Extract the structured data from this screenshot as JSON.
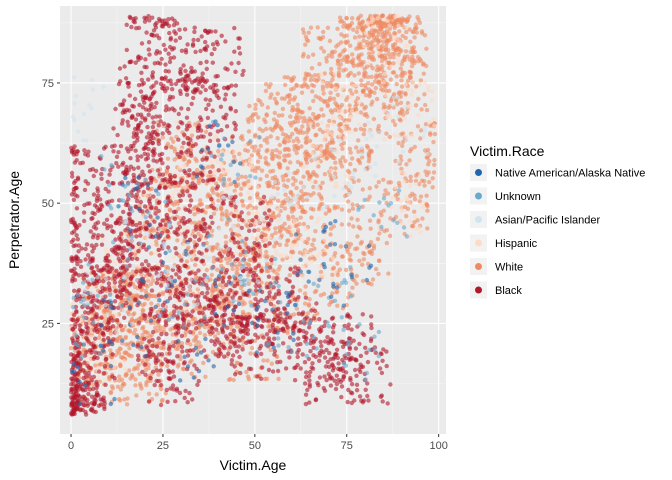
{
  "chart_data": {
    "type": "scatter",
    "xlabel": "Victim.Age",
    "ylabel": "Perpetrator.Age",
    "xlim": [
      -3,
      102
    ],
    "ylim": [
      2,
      91
    ],
    "x_ticks": [
      0,
      25,
      50,
      75,
      100
    ],
    "y_ticks": [
      25,
      50,
      75
    ],
    "grid": true,
    "legend": {
      "title": "Victim.Race",
      "position": "right",
      "entries": [
        {
          "name": "Native American/Alaska Native",
          "color": "#2166ac"
        },
        {
          "name": "Unknown",
          "color": "#67a9cf"
        },
        {
          "name": "Asian/Pacific Islander",
          "color": "#d1e5f0"
        },
        {
          "name": "Hispanic",
          "color": "#fddbc7"
        },
        {
          "name": "White",
          "color": "#ef8a62"
        },
        {
          "name": "Black",
          "color": "#b2182b"
        }
      ]
    },
    "series": [
      {
        "name": "White",
        "color": "#ef8a62",
        "x": [
          5,
          10,
          15,
          20,
          25,
          30,
          35,
          40,
          45,
          50,
          55,
          60,
          65,
          70,
          75,
          80,
          85,
          90,
          95,
          20,
          30,
          40,
          50,
          60,
          70,
          80,
          85,
          88,
          75,
          65,
          55,
          45,
          35,
          25,
          15,
          8,
          60,
          70,
          80,
          90,
          50,
          40,
          30,
          20,
          10,
          65,
          75,
          85,
          90,
          55
        ],
        "y": [
          20,
          25,
          30,
          40,
          50,
          60,
          55,
          45,
          35,
          40,
          50,
          60,
          65,
          70,
          75,
          80,
          85,
          82,
          60,
          30,
          40,
          50,
          60,
          70,
          80,
          85,
          88,
          86,
          65,
          55,
          45,
          35,
          30,
          25,
          20,
          15,
          30,
          35,
          40,
          50,
          20,
          25,
          20,
          15,
          30,
          45,
          55,
          70,
          75,
          65
        ]
      },
      {
        "name": "Black",
        "color": "#b2182b",
        "x": [
          0,
          2,
          5,
          8,
          12,
          15,
          18,
          20,
          22,
          25,
          28,
          30,
          32,
          35,
          38,
          40,
          42,
          45,
          48,
          50,
          55,
          60,
          65,
          70,
          75,
          80,
          20,
          25,
          30,
          18,
          22,
          15,
          10,
          5,
          3,
          0,
          1,
          35,
          45,
          28
        ],
        "y": [
          8,
          15,
          25,
          35,
          45,
          55,
          65,
          75,
          85,
          20,
          30,
          40,
          50,
          60,
          70,
          80,
          25,
          35,
          45,
          20,
          30,
          25,
          20,
          15,
          20,
          15,
          60,
          70,
          80,
          40,
          50,
          35,
          30,
          20,
          10,
          40,
          55,
          30,
          25,
          15
        ]
      },
      {
        "name": "Hispanic",
        "color": "#fddbc7",
        "x": [
          5,
          15,
          25,
          35,
          45,
          55,
          65,
          75,
          85,
          92,
          10,
          30,
          50,
          70,
          90
        ],
        "y": [
          30,
          40,
          50,
          60,
          55,
          45,
          40,
          70,
          85,
          70,
          20,
          35,
          45,
          60,
          50
        ]
      },
      {
        "name": "Unknown",
        "color": "#67a9cf",
        "x": [
          2,
          10,
          20,
          30,
          40,
          50,
          60,
          70,
          80,
          15,
          45,
          85
        ],
        "y": [
          25,
          35,
          45,
          30,
          40,
          35,
          25,
          30,
          20,
          55,
          60,
          50
        ]
      },
      {
        "name": "Native American/Alaska Native",
        "color": "#2166ac",
        "x": [
          5,
          15,
          25,
          35,
          45,
          55,
          65,
          75,
          18,
          40
        ],
        "y": [
          15,
          25,
          35,
          20,
          30,
          25,
          40,
          35,
          50,
          60
        ]
      },
      {
        "name": "Asian/Pacific Islander",
        "color": "#d1e5f0",
        "x": [
          10,
          20,
          30,
          40,
          50,
          60,
          70,
          80,
          2,
          90
        ],
        "y": [
          30,
          40,
          35,
          45,
          40,
          50,
          55,
          60,
          70,
          65
        ]
      }
    ]
  }
}
